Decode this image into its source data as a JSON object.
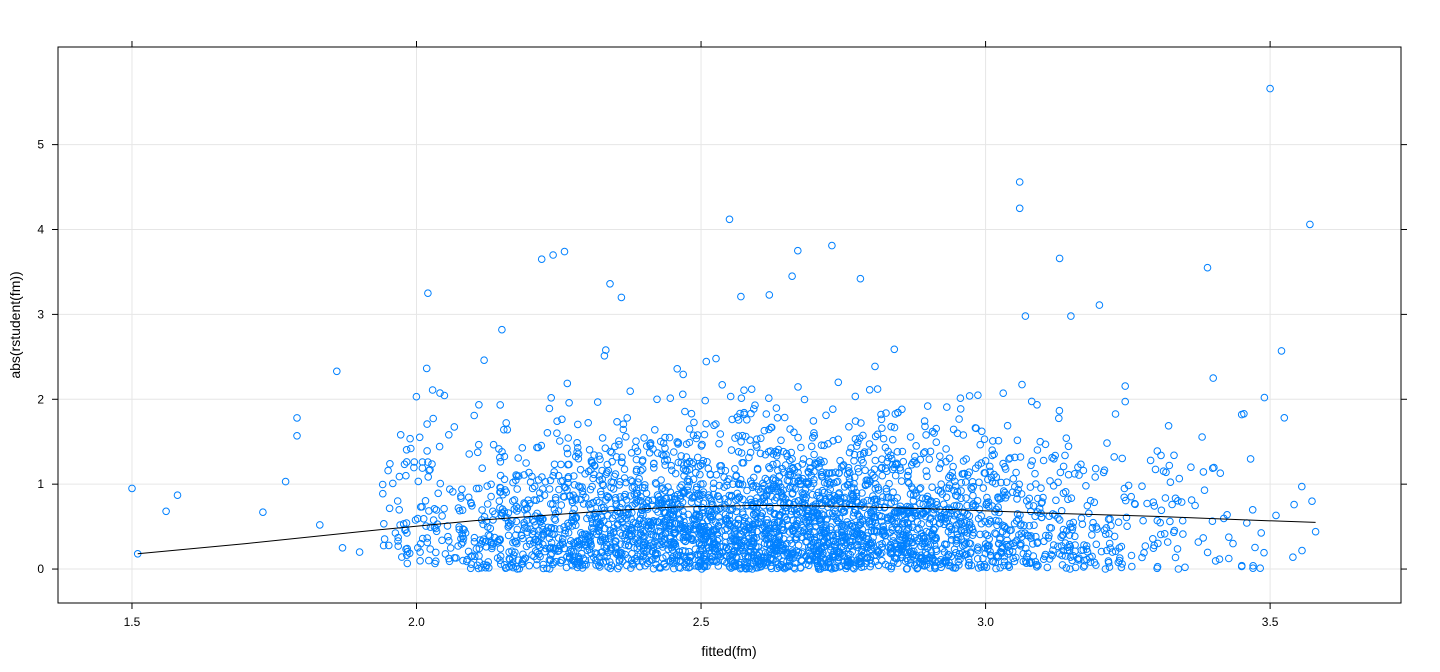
{
  "chart_data": {
    "type": "scatter",
    "xlabel": "fitted(fm)",
    "ylabel": "abs(rstudent(fm))",
    "xlim": [
      1.37,
      3.73
    ],
    "ylim": [
      -0.4,
      6.15
    ],
    "x_ticks": [
      1.5,
      2.0,
      2.5,
      3.0,
      3.5
    ],
    "x_tick_labels": [
      "1.5",
      "2.0",
      "2.5",
      "3.0",
      "3.5"
    ],
    "y_ticks": [
      0,
      1,
      2,
      3,
      4,
      5
    ],
    "y_tick_labels": [
      "0",
      "1",
      "2",
      "3",
      "4",
      "5"
    ],
    "grid": true,
    "point_color": "#0080ff",
    "line_color": "#000000",
    "series": [
      {
        "role": "points",
        "highlighted_points": [
          [
            1.5,
            0.95
          ],
          [
            1.51,
            0.18
          ],
          [
            1.56,
            0.68
          ],
          [
            1.58,
            0.87
          ],
          [
            1.73,
            0.67
          ],
          [
            1.77,
            1.03
          ],
          [
            1.79,
            1.78
          ],
          [
            1.79,
            1.57
          ],
          [
            1.83,
            0.52
          ],
          [
            1.86,
            2.33
          ],
          [
            1.87,
            0.25
          ],
          [
            1.9,
            0.2
          ],
          [
            1.95,
            1.16
          ],
          [
            1.99,
            1.42
          ],
          [
            2.02,
            1.26
          ],
          [
            2.02,
            3.25
          ],
          [
            2.15,
            2.82
          ],
          [
            2.22,
            3.65
          ],
          [
            2.24,
            3.7
          ],
          [
            2.26,
            3.74
          ],
          [
            2.34,
            3.36
          ],
          [
            2.36,
            3.2
          ],
          [
            2.55,
            4.12
          ],
          [
            2.57,
            3.21
          ],
          [
            2.62,
            3.23
          ],
          [
            2.66,
            3.45
          ],
          [
            2.67,
            3.75
          ],
          [
            2.73,
            3.81
          ],
          [
            2.78,
            3.42
          ],
          [
            3.06,
            4.56
          ],
          [
            3.06,
            4.25
          ],
          [
            3.07,
            2.98
          ],
          [
            3.13,
            3.66
          ],
          [
            3.15,
            2.98
          ],
          [
            3.2,
            3.11
          ],
          [
            3.29,
            1.28
          ],
          [
            3.39,
            3.55
          ],
          [
            3.4,
            2.25
          ],
          [
            3.45,
            1.82
          ],
          [
            3.49,
            2.02
          ],
          [
            3.5,
            5.66
          ],
          [
            3.52,
            2.57
          ],
          [
            3.57,
            4.06
          ],
          [
            3.58,
            0.44
          ],
          [
            3.54,
            0.14
          ],
          [
            3.47,
            0.01
          ],
          [
            3.45,
            0.03
          ]
        ],
        "bulk_distribution": {
          "n": 3400,
          "x_center": 2.62,
          "x_sd": 0.33,
          "x_range": [
            1.94,
            3.58
          ],
          "description_free": true
        }
      },
      {
        "role": "smoother",
        "x": [
          1.51,
          1.7,
          1.9,
          2.1,
          2.3,
          2.45,
          2.6,
          2.75,
          2.9,
          3.1,
          3.3,
          3.45,
          3.58
        ],
        "y": [
          0.18,
          0.3,
          0.44,
          0.57,
          0.67,
          0.73,
          0.75,
          0.74,
          0.71,
          0.66,
          0.62,
          0.58,
          0.55
        ]
      }
    ]
  }
}
